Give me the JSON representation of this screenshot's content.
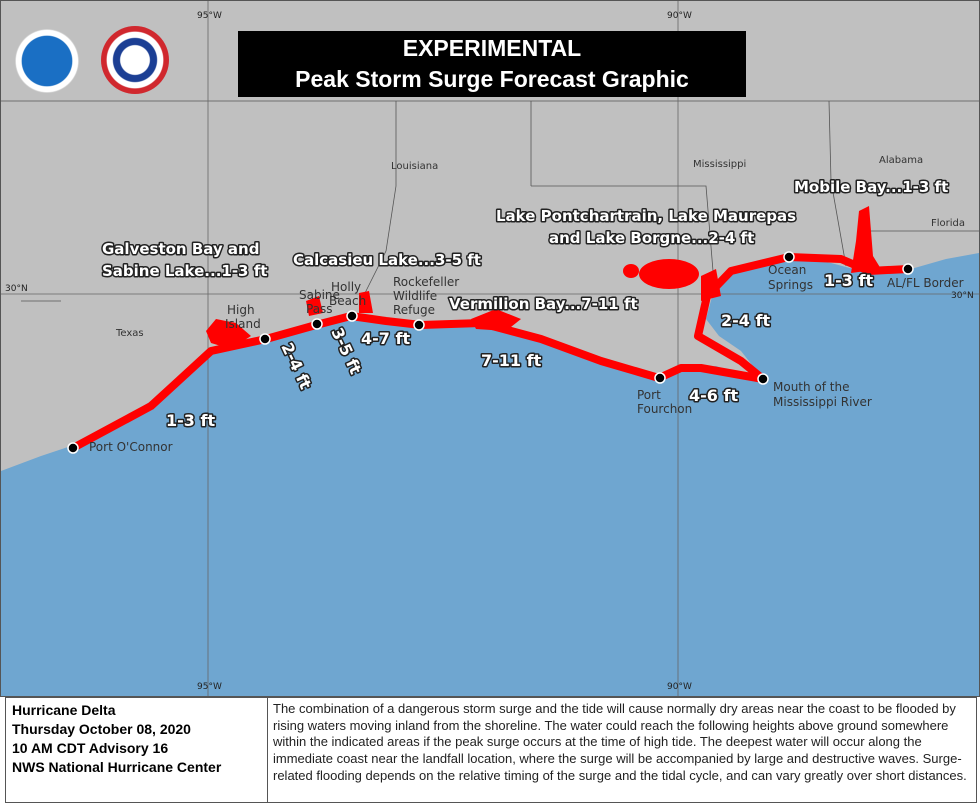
{
  "title": {
    "line1": "EXPERIMENTAL",
    "line2": "Peak Storm Surge Forecast Graphic"
  },
  "logos": {
    "noaa": "NOAA",
    "nws": "NATIONAL WEATHER SERVICE"
  },
  "grid": {
    "lon95": "95°W",
    "lon90": "90°W",
    "lat30": "30°N"
  },
  "states": {
    "texas": "Texas",
    "louisiana": "Louisiana",
    "mississippi": "Mississippi",
    "alabama": "Alabama",
    "florida": "Florida"
  },
  "places": {
    "port_oconnor": "Port O'Connor",
    "high_island_1": "High",
    "high_island_2": "Island",
    "sabine_pass_1": "Sabine",
    "sabine_pass_2": "Pass",
    "holly_beach_1": "Holly",
    "holly_beach_2": "Beach",
    "rockefeller_1": "Rockefeller",
    "rockefeller_2": "Wildlife",
    "rockefeller_3": "Refuge",
    "port_fourchon_1": "Port",
    "port_fourchon_2": "Fourchon",
    "mouth_1": "Mouth of the",
    "mouth_2": "Mississippi River",
    "ocean_springs_1": "Ocean",
    "ocean_springs_2": "Springs",
    "al_fl_border": "AL/FL Border"
  },
  "surge_labels": {
    "galveston_1": "Galveston Bay and",
    "galveston_2": "Sabine Lake...1-3 ft",
    "calcasieu": "Calcasieu Lake...3-5 ft",
    "vermilion": "Vermilion Bay...7-11 ft",
    "pontchartrain_1": "Lake Pontchartrain, Lake Maurepas",
    "pontchartrain_2": "and Lake Borgne...2-4 ft",
    "mobile": "Mobile Bay...1-3 ft",
    "seg_1_3_tx": "1-3 ft",
    "seg_2_4_tx": "2-4 ft",
    "seg_3_5": "3-5 ft",
    "seg_4_7": "4-7 ft",
    "seg_7_11": "7-11 ft",
    "seg_4_6": "4-6 ft",
    "seg_2_4_ms": "2-4 ft",
    "seg_1_3_al": "1-3 ft"
  },
  "info": {
    "storm": "Hurricane Delta",
    "date": "Thursday October 08, 2020",
    "advisory": "10 AM CDT Advisory 16",
    "agency": "NWS National Hurricane Center",
    "text": "The combination of a dangerous storm surge and the tide will cause normally dry areas near the coast to be flooded by rising waters moving inland from the shoreline. The water could reach the following heights above ground somewhere within the indicated areas if the peak surge occurs at the time of high tide.  The deepest water will occur along the immediate coast near the landfall location, where the surge will be accompanied by large and destructive waves.  Surge-related flooding depends on the relative timing of the surge and the tidal cycle, and can vary greatly over short distances."
  },
  "colors": {
    "land": "#c0c0c0",
    "water": "#6fa6d0",
    "surge": "#ff0000"
  }
}
